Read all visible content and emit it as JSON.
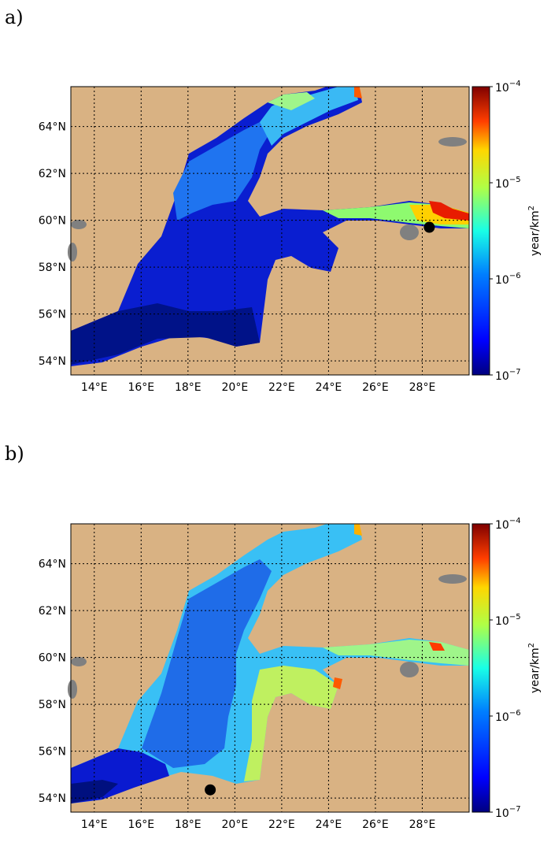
{
  "panels": [
    {
      "label": "a)",
      "marker": {
        "lon": 28.3,
        "lat": 59.7
      }
    },
    {
      "label": "b)",
      "marker": {
        "lon": 18.95,
        "lat": 54.35
      }
    }
  ],
  "map": {
    "lon_range": [
      13.0,
      30.0
    ],
    "lat_range": [
      53.4,
      65.7
    ],
    "lon_ticks": [
      "14°E",
      "16°E",
      "18°E",
      "20°E",
      "22°E",
      "24°E",
      "26°E",
      "28°E"
    ],
    "lon_tick_values": [
      14,
      16,
      18,
      20,
      22,
      24,
      26,
      28
    ],
    "lat_ticks": [
      "64°N",
      "62°N",
      "60°N",
      "58°N",
      "56°N",
      "54°N"
    ],
    "lat_tick_values": [
      64,
      62,
      60,
      58,
      56,
      54
    ],
    "land_color": "#d9b283",
    "lake_color": "#808080"
  },
  "colorbar": {
    "scale": "log",
    "range": [
      1e-07,
      0.0001
    ],
    "tick_labels": [
      {
        "base": "10",
        "exp": "−4"
      },
      {
        "base": "10",
        "exp": "−5"
      },
      {
        "base": "10",
        "exp": "−6"
      },
      {
        "base": "10",
        "exp": "−7"
      }
    ],
    "tick_values": [
      0.0001,
      1e-05,
      1e-06,
      1e-07
    ],
    "unit_main": "year/km",
    "unit_sup": "2"
  }
}
